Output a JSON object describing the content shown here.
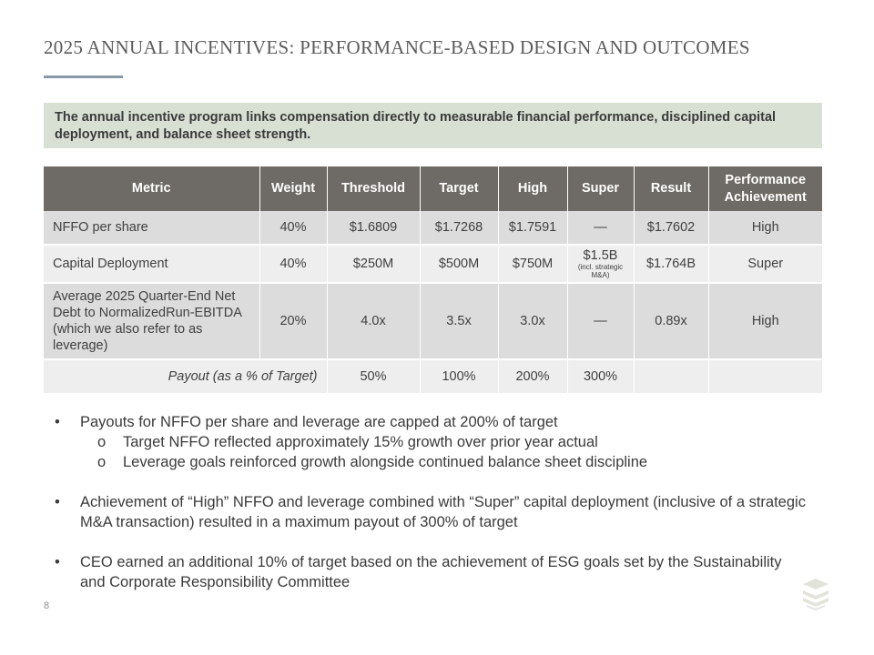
{
  "title": "2025 ANNUAL INCENTIVES: PERFORMANCE-BASED DESIGN AND OUTCOMES",
  "callout": "The annual incentive program links compensation directly to measurable financial performance, disciplined capital deployment, and balance sheet strength.",
  "table": {
    "headers": [
      "Metric",
      "Weight",
      "Threshold",
      "Target",
      "High",
      "Super",
      "Result",
      "Performance Achievement"
    ],
    "rows": [
      {
        "metric": "NFFO per share",
        "weight": "40%",
        "threshold": "$1.6809",
        "target": "$1.7268",
        "high": "$1.7591",
        "super": "—",
        "super_note": "",
        "result": "$1.7602",
        "achievement": "High"
      },
      {
        "metric": "Capital Deployment",
        "weight": "40%",
        "threshold": "$250M",
        "target": "$500M",
        "high": "$750M",
        "super": "$1.5B",
        "super_note": "(incl. strategic M&A)",
        "result": "$1.764B",
        "achievement": "Super"
      },
      {
        "metric": "Average 2025 Quarter-End Net Debt to NormalizedRun-EBITDA (which we also refer to as leverage)",
        "weight": "20%",
        "threshold": "4.0x",
        "target": "3.5x",
        "high": "3.0x",
        "super": "—",
        "super_note": "",
        "result": "0.89x",
        "achievement": "High"
      }
    ],
    "payout": {
      "label": "Payout (as a % of Target)",
      "threshold": "50%",
      "target": "100%",
      "high": "200%",
      "super": "300%"
    }
  },
  "bullets": {
    "b1": "Payouts for NFFO per share and leverage are capped at 200% of target",
    "b1_sub1": "Target NFFO reflected approximately 15% growth over prior year actual",
    "b1_sub2": "Leverage goals reinforced growth alongside continued balance sheet discipline",
    "b2": "Achievement of “High” NFFO and leverage combined with “Super” capital deployment (inclusive of a strategic M&A transaction) resulted in a maximum payout of 300% of target",
    "b3": "CEO earned an additional 10% of target based on the achievement of ESG goals set by the Sustainability and Corporate Responsibility Committee",
    "bullet_glyph": "•",
    "sub_glyph": "o"
  },
  "page_number": "8",
  "logo_icon": "stacked-chevrons-logo-icon"
}
